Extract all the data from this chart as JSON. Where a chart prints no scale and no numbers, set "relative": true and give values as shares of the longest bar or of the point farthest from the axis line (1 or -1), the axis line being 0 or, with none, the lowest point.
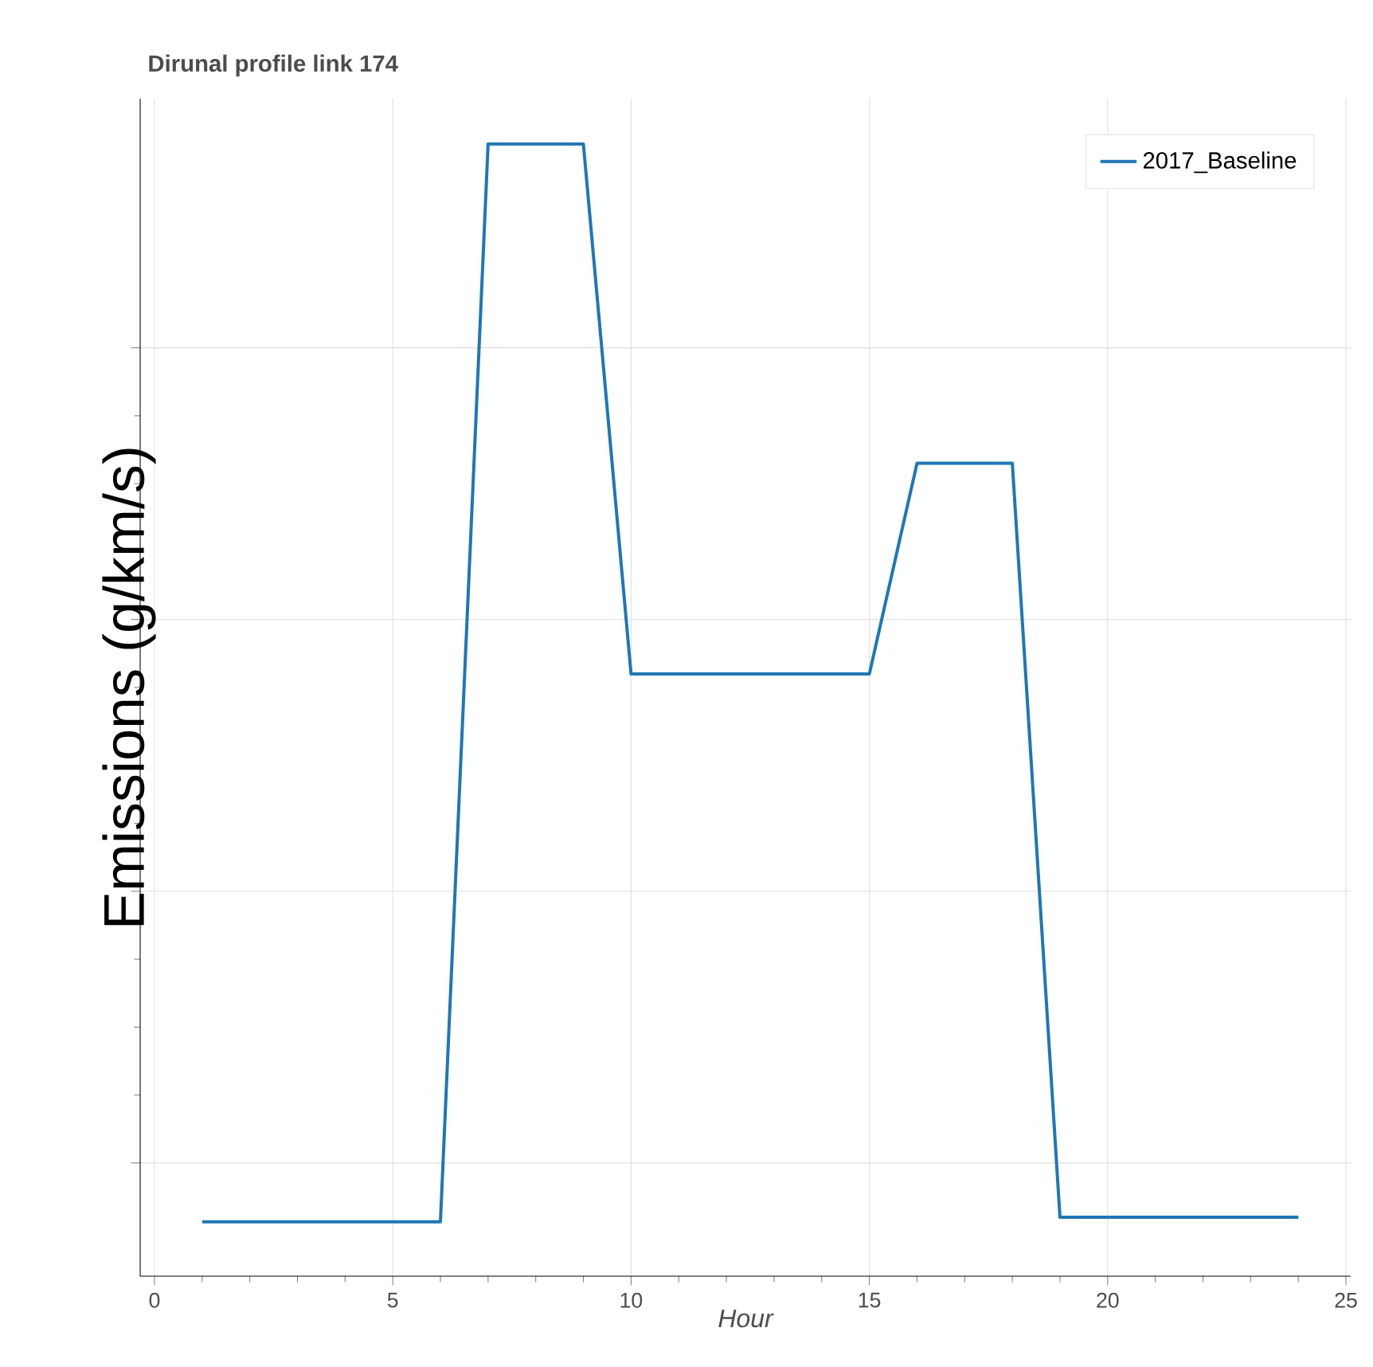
{
  "chart_data": {
    "type": "line",
    "title": "Dirunal profile link 174",
    "xlabel": "Hour",
    "ylabel": "Emissions (g/km/s)",
    "x": [
      1,
      2,
      3,
      4,
      5,
      6,
      7,
      8,
      9,
      10,
      11,
      12,
      13,
      14,
      15,
      16,
      17,
      18,
      19,
      20,
      21,
      22,
      23,
      24
    ],
    "series": [
      {
        "name": "2017_Baseline",
        "color": "#1f77b4",
        "values": [
          0.048,
          0.048,
          0.048,
          0.048,
          0.048,
          0.048,
          1,
          1,
          1,
          0.532,
          0.532,
          0.532,
          0.532,
          0.532,
          0.532,
          0.718,
          0.718,
          0.718,
          0.052,
          0.052,
          0.052,
          0.052,
          0.052,
          0.052
        ]
      }
    ],
    "relative": true,
    "xlim": [
      -0.3,
      25.1
    ],
    "xticks": [
      0,
      5,
      10,
      15,
      20,
      25
    ],
    "grid": true,
    "legend": "top right",
    "marker": "none",
    "line_style": "solid"
  }
}
